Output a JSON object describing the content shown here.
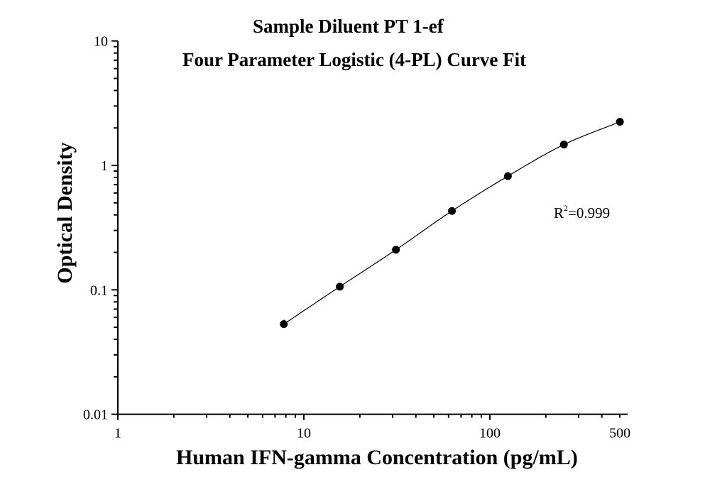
{
  "chart_data": {
    "type": "scatter",
    "title": "Sample Diluent PT 1-ef",
    "subtitle": "Four Parameter Logistic (4-PL) Curve Fit",
    "xlabel": "Human IFN-gamma Concentration (pg/mL)",
    "ylabel": "Optical Density",
    "xscale": "log",
    "yscale": "log",
    "xlim": [
      1,
      550
    ],
    "ylim": [
      0.01,
      10
    ],
    "x_ticks": [
      "1",
      "10",
      "100",
      "500"
    ],
    "y_ticks": [
      "0.01",
      "0.1",
      "1",
      "10"
    ],
    "grid": false,
    "legend": null,
    "annotation": {
      "text_base": "R",
      "text_sup": "2",
      "text_rest": "=0.999"
    },
    "series": [
      {
        "name": "Standard points",
        "marker": "filled-circle",
        "color": "#000000",
        "x": [
          7.8,
          15.6,
          31.25,
          62.5,
          125,
          250,
          500
        ],
        "y": [
          0.053,
          0.106,
          0.21,
          0.43,
          0.82,
          1.47,
          2.24
        ]
      },
      {
        "name": "4-PL fit curve",
        "line": "solid",
        "color": "#000000"
      }
    ]
  }
}
